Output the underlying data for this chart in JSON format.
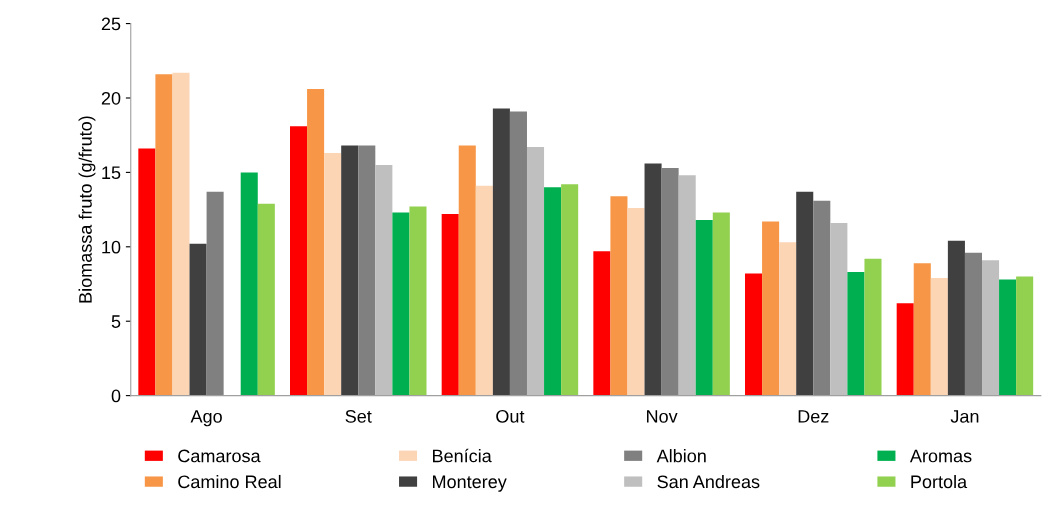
{
  "chart_data": {
    "type": "bar",
    "ylabel": "Biomassa fruto (g/fruto)",
    "categories": [
      "Ago",
      "Set",
      "Out",
      "Nov",
      "Dez",
      "Jan"
    ],
    "series": [
      {
        "name": "Camarosa",
        "color": "#ff0000",
        "values": [
          16.6,
          18.1,
          12.2,
          9.7,
          8.2,
          6.2
        ]
      },
      {
        "name": "Camino Real",
        "color": "#f79646",
        "values": [
          21.6,
          20.6,
          16.8,
          13.4,
          11.7,
          8.9
        ]
      },
      {
        "name": "Benícia",
        "color": "#fcd5b5",
        "values": [
          21.7,
          16.3,
          14.1,
          12.6,
          10.3,
          7.9
        ]
      },
      {
        "name": "Monterey",
        "color": "#404040",
        "values": [
          10.2,
          16.8,
          19.3,
          15.6,
          13.7,
          10.4
        ]
      },
      {
        "name": "Albion",
        "color": "#808080",
        "values": [
          13.7,
          16.8,
          19.1,
          15.3,
          13.1,
          9.6
        ]
      },
      {
        "name": "San Andreas",
        "color": "#bfbfbf",
        "values": [
          null,
          15.5,
          16.7,
          14.8,
          11.6,
          9.1
        ]
      },
      {
        "name": "Aromas",
        "color": "#00b050",
        "values": [
          15.0,
          12.3,
          14.0,
          11.8,
          8.3,
          7.8
        ]
      },
      {
        "name": "Portola",
        "color": "#92d050",
        "values": [
          12.9,
          12.7,
          14.2,
          12.3,
          9.2,
          8.0
        ]
      }
    ],
    "ylim": [
      0,
      25
    ],
    "yticks": [
      0,
      5,
      10,
      15,
      20,
      25
    ],
    "grid": false,
    "legend": "bottom"
  }
}
